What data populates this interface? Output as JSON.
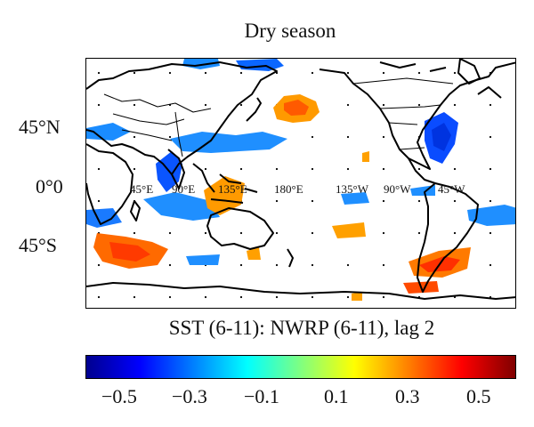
{
  "title": "Dry season",
  "subtitle": "SST (6-11): NWRP (6-11), lag 2",
  "lat_labels": [
    "45°N",
    "0°0",
    "45°S"
  ],
  "lon_labels": [
    "45°E",
    "90°E",
    "135°E",
    "180°E",
    "135°W",
    "90°W",
    "45°W"
  ],
  "colorbar": {
    "ticks": [
      "−0.5",
      "−0.3",
      "−0.1",
      "0.1",
      "0.3",
      "0.5"
    ],
    "range": [
      -0.6,
      0.6
    ],
    "colormap": "jet",
    "colors": [
      "#00008f",
      "#0000ff",
      "#0080ff",
      "#00ffff",
      "#80ff80",
      "#ffff00",
      "#ff8000",
      "#ff0000",
      "#800000"
    ]
  },
  "colors": {
    "positive_strong": "#ff3000",
    "positive": "#ff9900",
    "negative": "#0080ff",
    "negative_strong": "#0033ff",
    "land_outline": "#000000"
  }
}
